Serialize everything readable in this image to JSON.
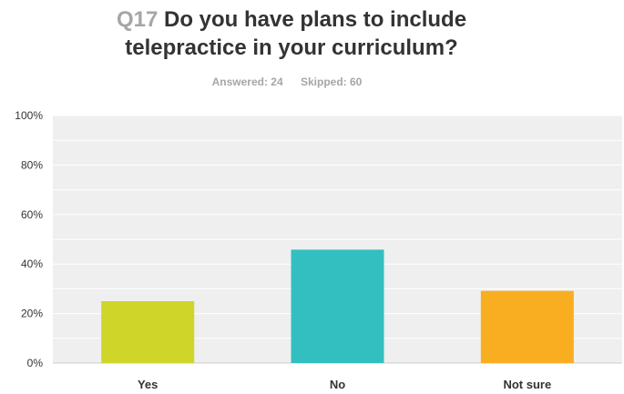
{
  "header": {
    "question_number": "Q17",
    "title_line1": "Do you have plans to include",
    "title_line2": "telepractice in your curriculum?",
    "answered": "Answered: 24",
    "skipped": "Skipped: 60"
  },
  "chart_data": {
    "type": "bar",
    "categories": [
      "Yes",
      "No",
      "Not sure"
    ],
    "values": [
      25,
      45.83,
      29.17
    ],
    "colors": [
      "#d0d52a",
      "#33bfc0",
      "#f9ae21"
    ],
    "ylim": [
      0,
      100
    ],
    "yticks": [
      "0%",
      "20%",
      "40%",
      "60%",
      "80%",
      "100%"
    ],
    "grid": true
  }
}
